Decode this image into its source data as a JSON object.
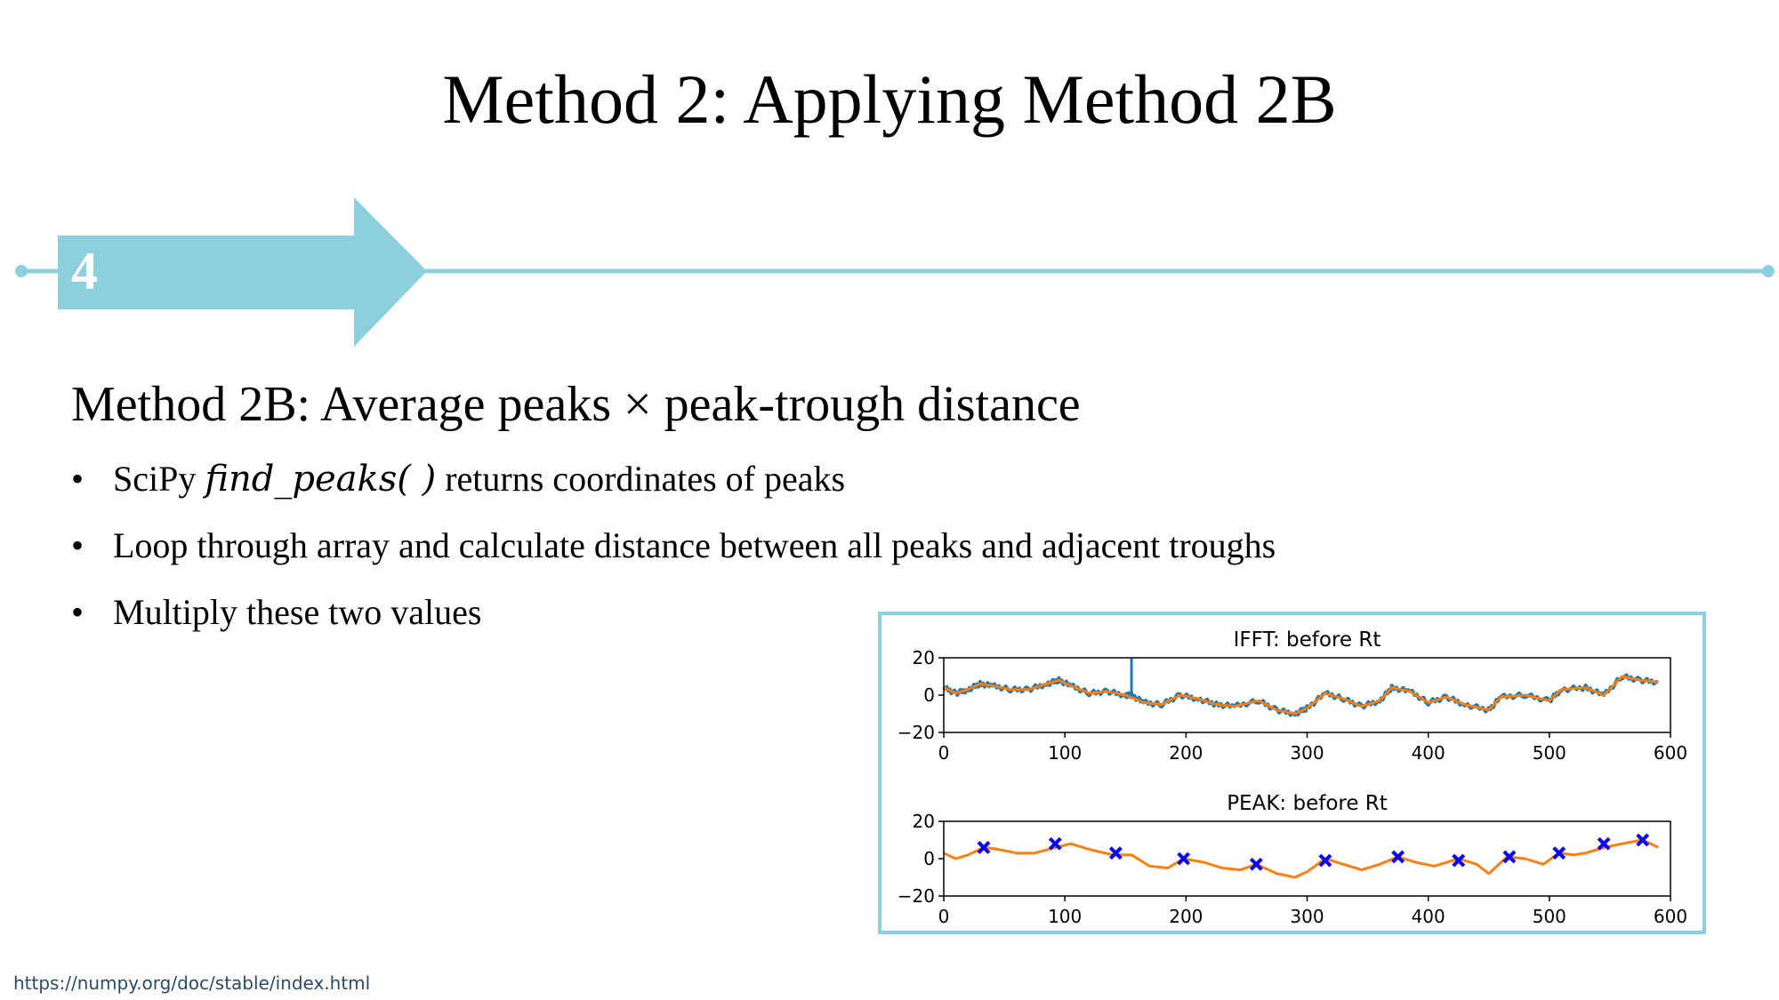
{
  "slide": {
    "title": "Method 2: Applying Method 2B",
    "step_number": "4",
    "subtitle": "Method 2B: Average peaks × peak-trough distance",
    "bullets": [
      {
        "marker": "•",
        "prefix": "SciPy ",
        "code": "find_peaks( )",
        "suffix": " returns coordinates of peaks"
      },
      {
        "marker": "•",
        "text": "Loop through array and calculate distance between all peaks and adjacent troughs"
      },
      {
        "marker": "•",
        "text": "Multiply these two values"
      }
    ],
    "footer_url": "https://numpy.org/doc/stable/index.html",
    "accent_color": "#8bd0dc"
  },
  "chart_data": [
    {
      "type": "line",
      "title": "IFFT: before Rt",
      "xlim": [
        0,
        600
      ],
      "ylim": [
        -20,
        20
      ],
      "xticks": [
        "0",
        "100",
        "200",
        "300",
        "400",
        "500",
        "600"
      ],
      "yticks": [
        "20",
        "0",
        "−20"
      ],
      "series": [
        {
          "color": "#1f77b4",
          "noisy": true,
          "x": [
            0,
            10,
            20,
            30,
            40,
            55,
            70,
            85,
            95,
            105,
            120,
            135,
            150,
            155,
            165,
            180,
            195,
            210,
            225,
            240,
            260,
            275,
            290,
            300,
            315,
            330,
            345,
            360,
            370,
            385,
            400,
            415,
            430,
            450,
            460,
            480,
            500,
            510,
            530,
            545,
            560,
            575,
            590
          ],
          "y": [
            4,
            1,
            3,
            6,
            5,
            3,
            3,
            6,
            8,
            5,
            1,
            2,
            0,
            0,
            -4,
            -5,
            0,
            -2,
            -5,
            -6,
            -3,
            -8,
            -10,
            -7,
            1,
            -2,
            -6,
            -3,
            4,
            2,
            -4,
            -1,
            -5,
            -8,
            -1,
            0,
            -3,
            3,
            4,
            0,
            10,
            8,
            7
          ]
        },
        {
          "color": "#ff7f0e",
          "noisy": false,
          "x": [
            0,
            10,
            20,
            30,
            40,
            55,
            70,
            85,
            95,
            105,
            120,
            135,
            150,
            165,
            180,
            195,
            210,
            225,
            240,
            260,
            275,
            290,
            300,
            315,
            330,
            345,
            360,
            370,
            385,
            400,
            415,
            430,
            450,
            460,
            480,
            500,
            510,
            530,
            545,
            560,
            575,
            590
          ],
          "y": [
            4,
            1,
            3,
            6,
            5,
            3,
            3,
            6,
            8,
            5,
            1,
            2,
            0,
            -4,
            -5,
            0,
            -2,
            -5,
            -6,
            -3,
            -8,
            -10,
            -7,
            1,
            -2,
            -6,
            -3,
            4,
            2,
            -4,
            -1,
            -5,
            -8,
            -1,
            0,
            -3,
            3,
            4,
            0,
            10,
            8,
            7
          ]
        }
      ],
      "spike": {
        "x": 155,
        "y_top": 20,
        "y_bottom": 0
      }
    },
    {
      "type": "line",
      "title": "PEAK: before Rt",
      "xlim": [
        0,
        600
      ],
      "ylim": [
        -20,
        20
      ],
      "xticks": [
        "0",
        "100",
        "200",
        "300",
        "400",
        "500",
        "600"
      ],
      "yticks": [
        "20",
        "0",
        "−20"
      ],
      "series": [
        {
          "color": "#ff7f0e",
          "noisy": false,
          "x": [
            0,
            10,
            20,
            33,
            45,
            60,
            75,
            92,
            105,
            120,
            140,
            155,
            170,
            185,
            198,
            215,
            230,
            245,
            258,
            275,
            290,
            300,
            315,
            330,
            345,
            360,
            375,
            390,
            405,
            425,
            440,
            450,
            465,
            480,
            495,
            508,
            520,
            530,
            545,
            560,
            577,
            590
          ],
          "y": [
            3,
            0,
            2,
            6,
            5,
            3,
            3,
            6,
            8,
            5,
            2,
            2,
            -4,
            -5,
            0,
            -2,
            -5,
            -6,
            -3,
            -8,
            -10,
            -7,
            0,
            -3,
            -6,
            -3,
            1,
            -2,
            -4,
            0,
            -3,
            -8,
            1,
            0,
            -3,
            3,
            2,
            3,
            6,
            8,
            10,
            6
          ]
        },
        {
          "color": "#0000ff",
          "type": "scatter",
          "marker": "x",
          "x": [
            33,
            92,
            142,
            198,
            258,
            315,
            375,
            425,
            467,
            508,
            545,
            577
          ],
          "y": [
            6,
            8,
            3,
            0,
            -3,
            -1,
            1,
            -1,
            1,
            3,
            8,
            10
          ]
        }
      ]
    }
  ]
}
